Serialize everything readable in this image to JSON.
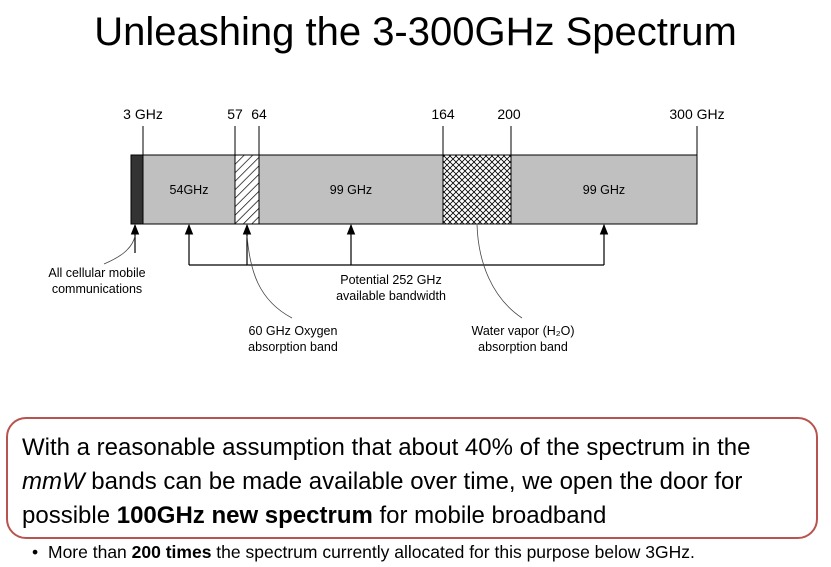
{
  "slide": {
    "title": "Unleashing the 3-300GHz Spectrum"
  },
  "diagram": {
    "ticks": [
      {
        "id": "3",
        "label": "3 GHz"
      },
      {
        "id": "57",
        "label": "57"
      },
      {
        "id": "64",
        "label": "64"
      },
      {
        "id": "164",
        "label": "164"
      },
      {
        "id": "200",
        "label": "200"
      },
      {
        "id": "300",
        "label": "300 GHz"
      }
    ],
    "bands": [
      {
        "id": "cellular",
        "fill": "#333333",
        "pattern": "solid"
      },
      {
        "id": "band-54",
        "label": "54GHz",
        "fill": "#c0c0c0",
        "pattern": "solid"
      },
      {
        "id": "oxygen",
        "fill": "#ffffff",
        "pattern": "hatch"
      },
      {
        "id": "band-99a",
        "label": "99 GHz",
        "fill": "#c0c0c0",
        "pattern": "solid"
      },
      {
        "id": "water",
        "fill": "#ffffff",
        "pattern": "crosshatch"
      },
      {
        "id": "band-99b",
        "label": "99 GHz",
        "fill": "#c0c0c0",
        "pattern": "solid"
      }
    ],
    "annotations": {
      "cellular": [
        "All cellular mobile",
        "communications"
      ],
      "bandwidth": [
        "Potential 252 GHz",
        "available bandwidth"
      ],
      "oxygen": [
        "60 GHz Oxygen",
        "absorption band"
      ],
      "water": [
        "Water vapor (H₂O)",
        "absorption band"
      ]
    }
  },
  "callout": {
    "line1": "With a reasonable assumption that about 40% of the spectrum in the",
    "line2_em": "mmW",
    "line2_rest": " bands can be made available over time, we open the door for",
    "line3_pre": "possible ",
    "line3_bold": "100GHz new spectrum",
    "line3_post": " for mobile broadband",
    "border_color": "#b85450"
  },
  "bullet": {
    "marker": "•",
    "pre": "More than ",
    "bold": "200 times",
    "post": " the spectrum currently allocated for this purpose below 3GHz."
  }
}
